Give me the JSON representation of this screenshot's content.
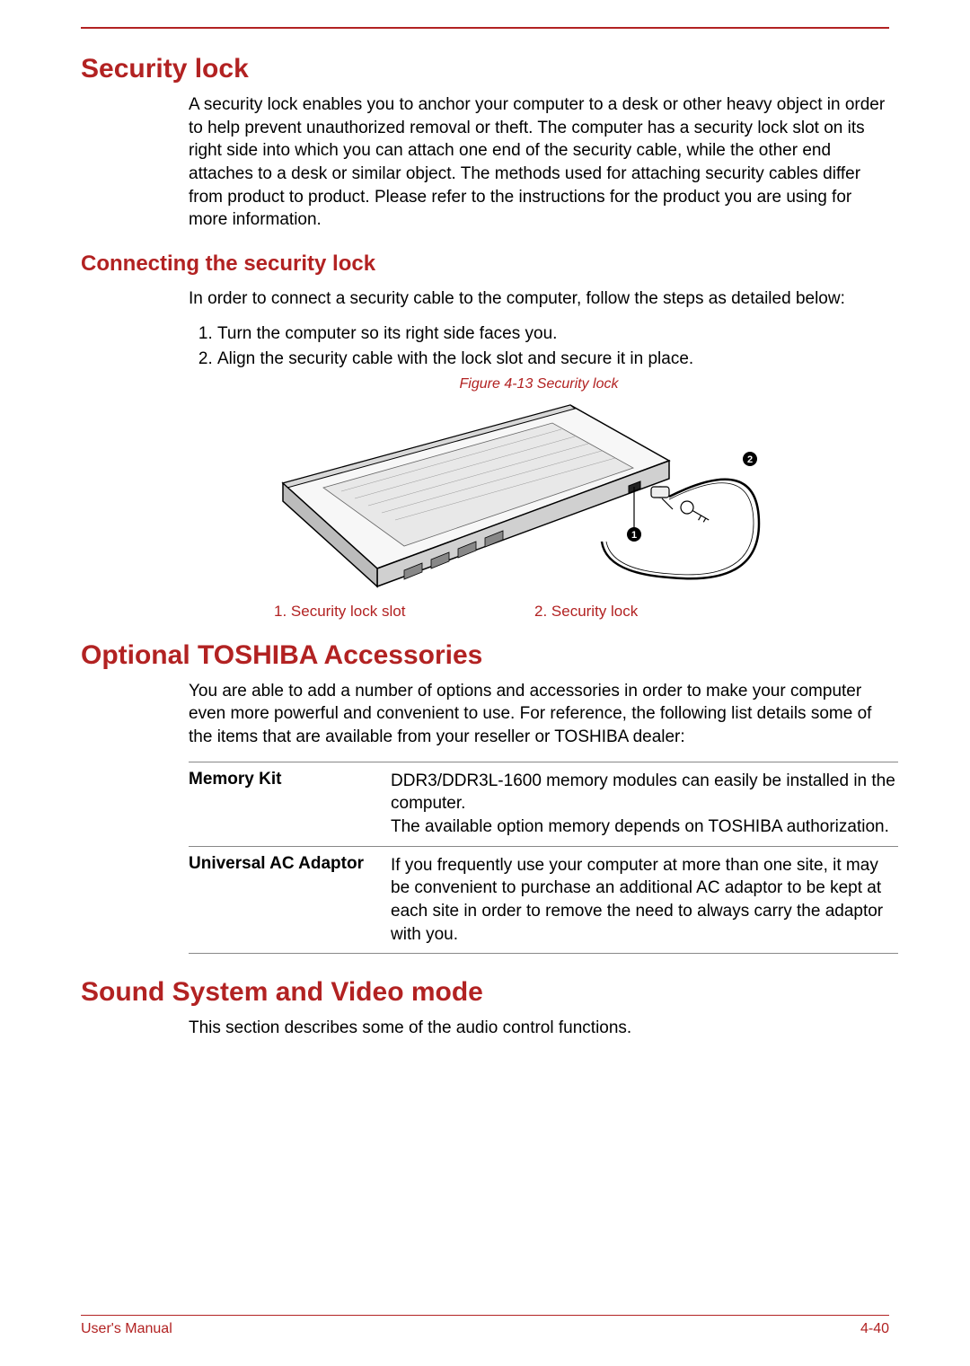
{
  "colors": {
    "accent": "#b22222",
    "text": "#000000",
    "rule": "#888888",
    "background": "#ffffff"
  },
  "typography": {
    "h1_size_pt": 22,
    "h2_size_pt": 18,
    "body_size_pt": 14,
    "caption_size_pt": 12,
    "font_family": "Arial"
  },
  "sections": {
    "security_lock": {
      "title": "Security lock",
      "intro": "A security lock enables you to anchor your computer to a desk or other heavy object in order to help prevent unauthorized removal or theft. The computer has a security lock slot on its right side into which you can attach one end of the security cable, while the other end attaches to a desk or similar object. The methods used for attaching security cables differ from product to product. Please refer to the instructions for the product you are using for more information.",
      "subsection": {
        "title": "Connecting the security lock",
        "intro": "In order to connect a security cable to the computer, follow the steps as detailed below:",
        "steps": [
          "Turn the computer so its right side faces you.",
          "Align the security cable with the lock slot and secure it in place."
        ],
        "figure": {
          "caption": "Figure 4-13 Security lock",
          "legend": [
            "1. Security lock slot",
            "2. Security lock"
          ],
          "callouts": [
            "1",
            "2"
          ],
          "diagram_type": "illustration",
          "stroke_color": "#000000",
          "fill_light": "#f5f5f5",
          "fill_dark": "#d0d0d0"
        }
      }
    },
    "accessories": {
      "title": "Optional TOSHIBA Accessories",
      "intro": "You are able to add a number of options and accessories in order to make your computer even more powerful and convenient to use. For reference, the following list details some of the items that are available from your reseller or TOSHIBA dealer:",
      "table": {
        "columns": [
          "name",
          "description"
        ],
        "rows": [
          {
            "name": "Memory Kit",
            "description": "DDR3/DDR3L-1600 memory modules can easily be installed in the computer.\nThe available option memory depends on TOSHIBA authorization."
          },
          {
            "name": "Universal AC Adaptor",
            "description": "If you frequently use your computer at more than one site, it may be convenient to purchase an additional AC adaptor to be kept at each site in order to remove the need to always carry the adaptor with you."
          }
        ]
      }
    },
    "sound": {
      "title": "Sound System and Video mode",
      "intro": "This section describes some of the audio control functions."
    }
  },
  "footer": {
    "left": "User's Manual",
    "right": "4-40"
  }
}
